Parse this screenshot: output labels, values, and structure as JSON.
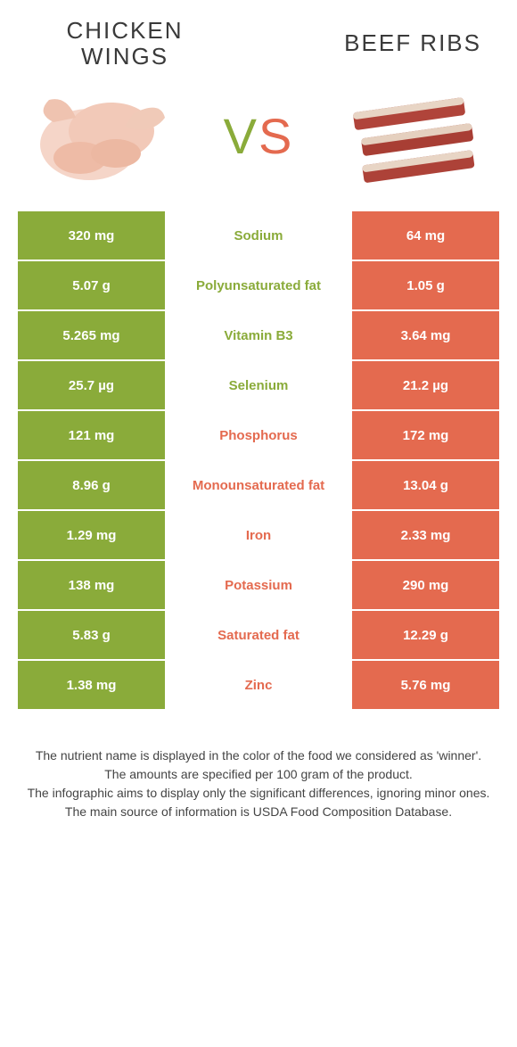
{
  "colors": {
    "left": "#8aab3a",
    "right": "#e46a4f",
    "mid_bg": "#ffffff"
  },
  "left_title": "Chicken wings",
  "right_title": "Beef ribs",
  "vs_v": "V",
  "vs_s": "S",
  "rows": [
    {
      "l": "320 mg",
      "m": "Sodium",
      "r": "64 mg",
      "winner": "left"
    },
    {
      "l": "5.07 g",
      "m": "Polyunsaturated fat",
      "r": "1.05 g",
      "winner": "left"
    },
    {
      "l": "5.265 mg",
      "m": "Vitamin B3",
      "r": "3.64 mg",
      "winner": "left"
    },
    {
      "l": "25.7 µg",
      "m": "Selenium",
      "r": "21.2 µg",
      "winner": "left"
    },
    {
      "l": "121 mg",
      "m": "Phosphorus",
      "r": "172 mg",
      "winner": "right"
    },
    {
      "l": "8.96 g",
      "m": "Monounsaturated fat",
      "r": "13.04 g",
      "winner": "right"
    },
    {
      "l": "1.29 mg",
      "m": "Iron",
      "r": "2.33 mg",
      "winner": "right"
    },
    {
      "l": "138 mg",
      "m": "Potassium",
      "r": "290 mg",
      "winner": "right"
    },
    {
      "l": "5.83 g",
      "m": "Saturated fat",
      "r": "12.29 g",
      "winner": "right"
    },
    {
      "l": "1.38 mg",
      "m": "Zinc",
      "r": "5.76 mg",
      "winner": "right"
    }
  ],
  "footer_lines": [
    "The nutrient name is displayed in the color of the food we considered as 'winner'.",
    "The amounts are specified per 100 gram of the product.",
    "The infographic aims to display only the significant differences, ignoring minor ones.",
    "The main source of information is USDA Food Composition Database."
  ]
}
